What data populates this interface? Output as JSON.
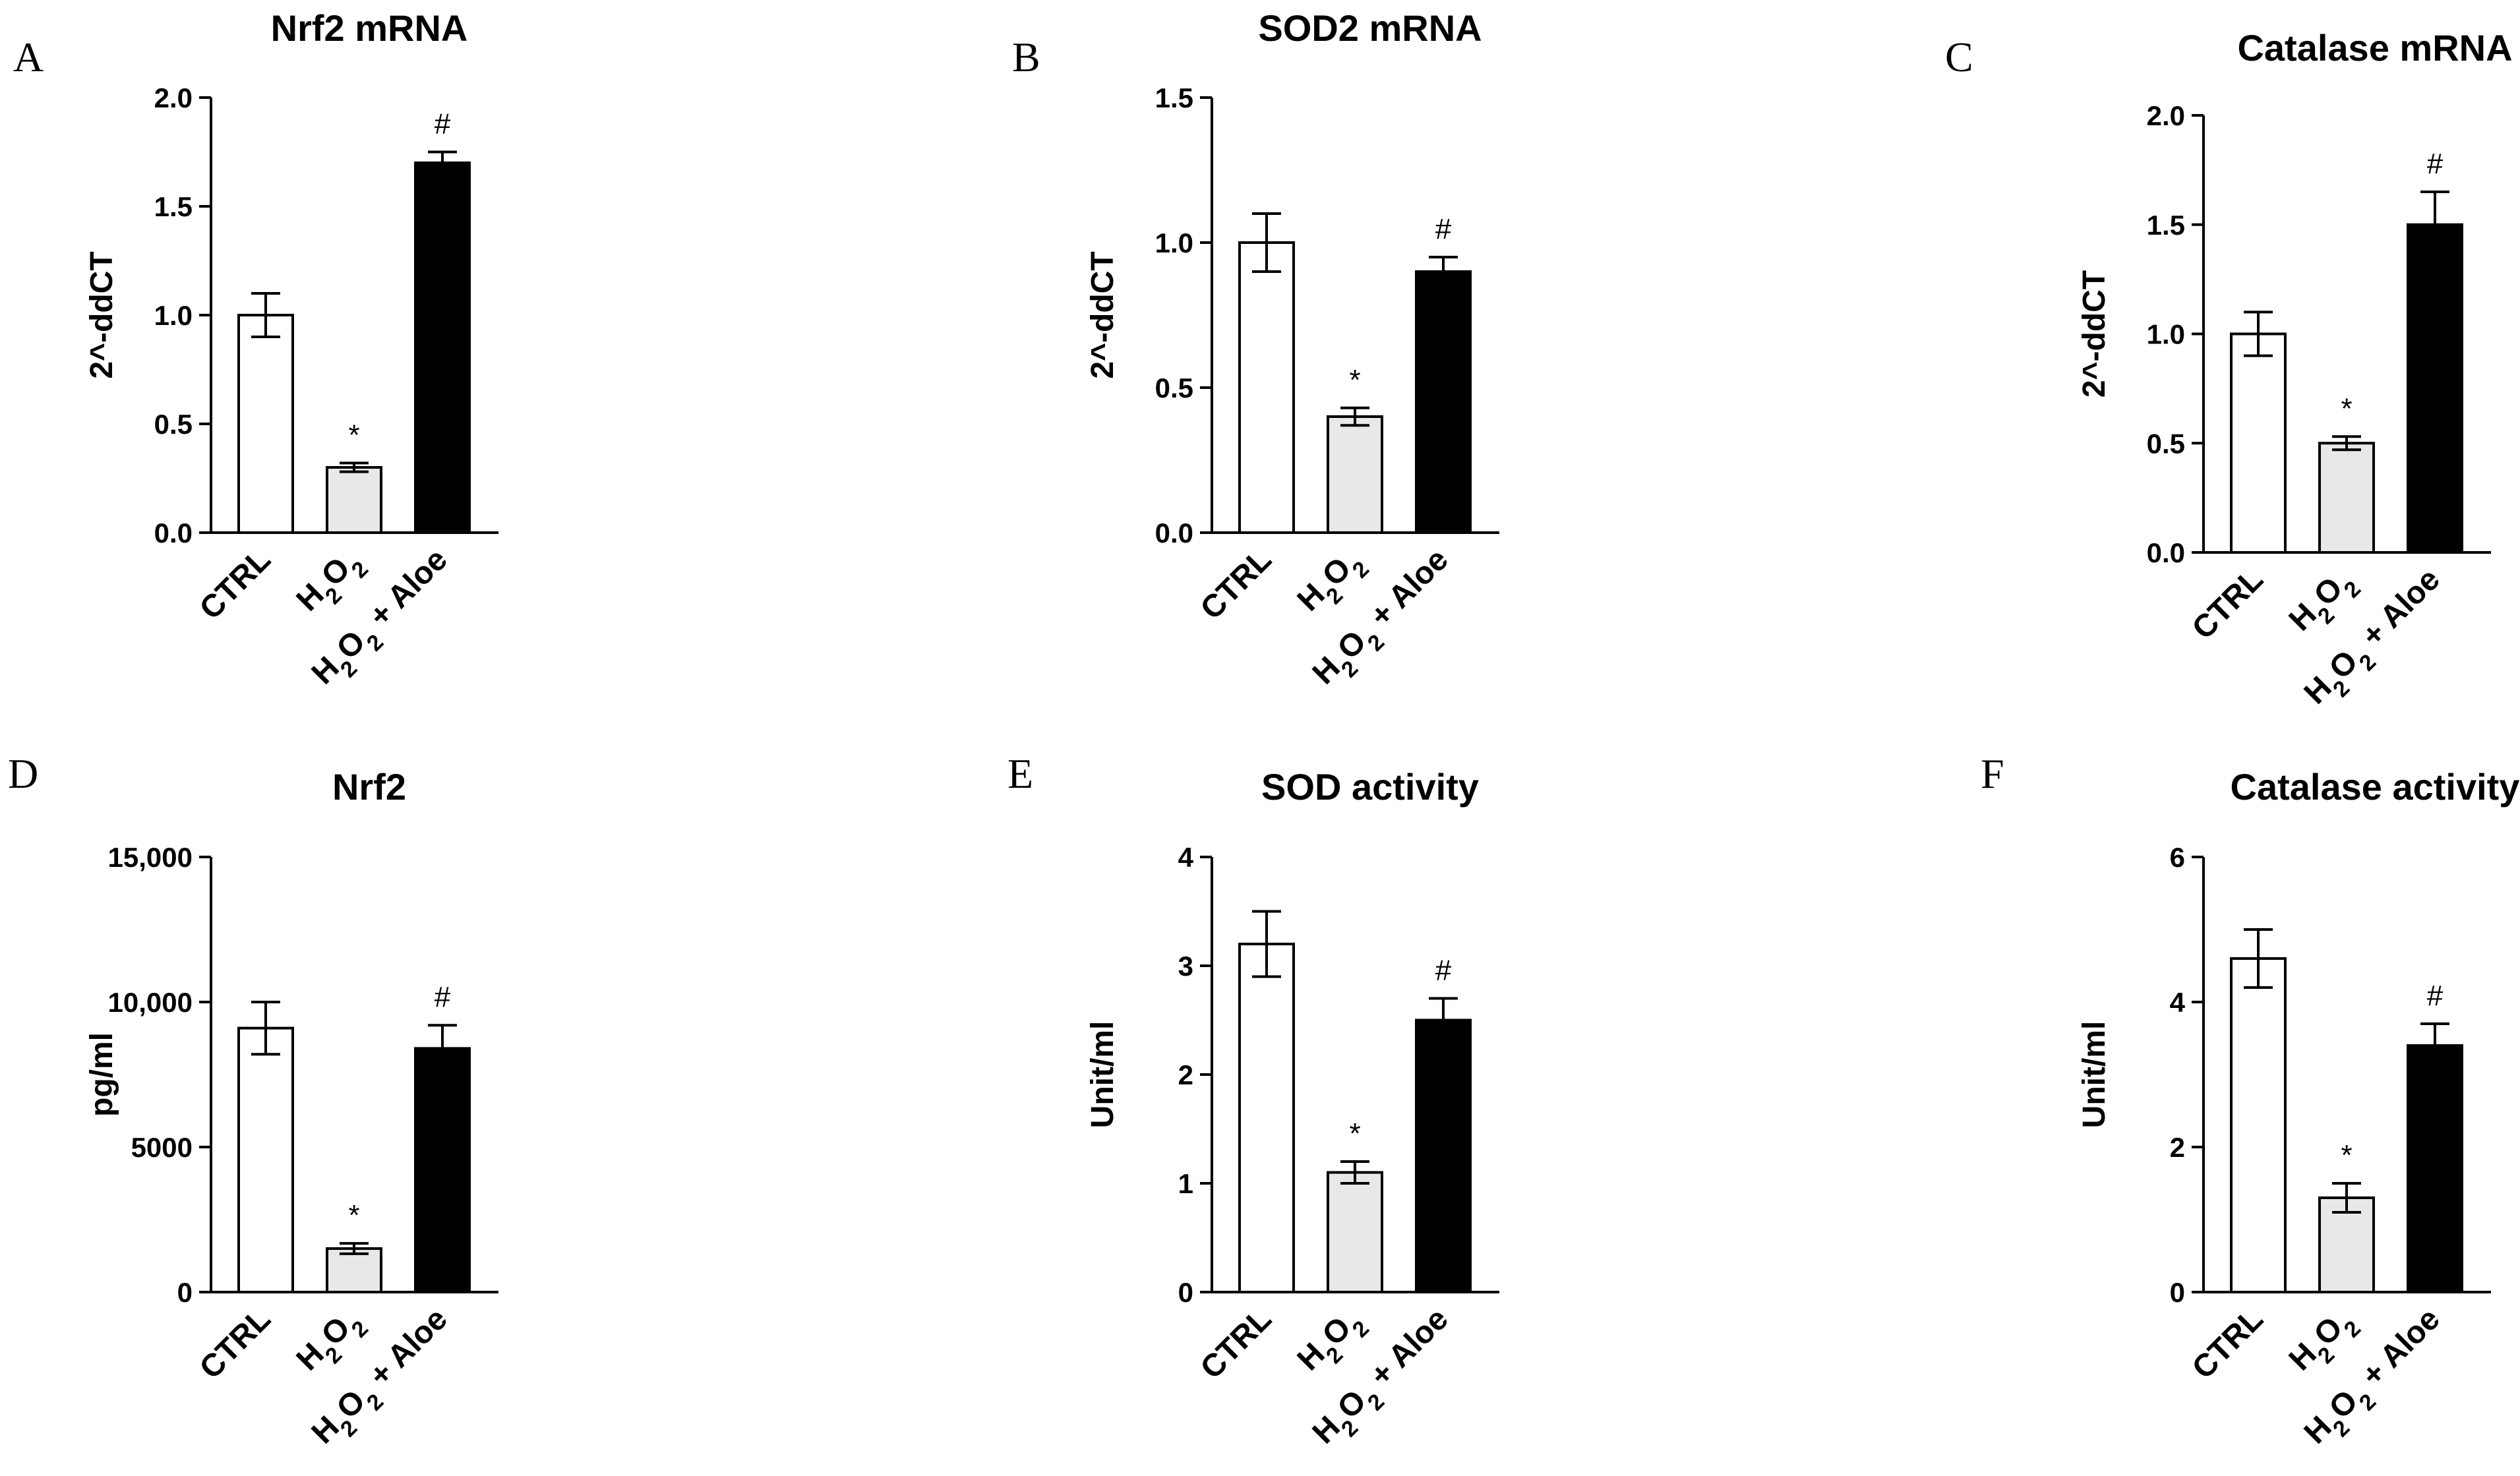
{
  "figure": {
    "colors": {
      "CTRL": "#ffffff",
      "H2O2": "#e8e8e8",
      "H2O2 + Aloe": "#000000",
      "axis": "#000000"
    }
  },
  "chart_data": [
    {
      "panel": "A",
      "type": "bar",
      "title": "Nrf2 mRNA",
      "ylabel": "2^-ddCT",
      "categories": [
        "CTRL",
        "H2O2",
        "H2O2 + Aloe"
      ],
      "values": [
        1.0,
        0.3,
        1.7
      ],
      "errors": [
        0.1,
        0.02,
        0.05
      ],
      "significance": [
        "",
        "*",
        "#"
      ],
      "ylim": [
        0,
        2.0
      ],
      "yticks": [
        0.0,
        0.5,
        1.0,
        1.5,
        2.0
      ],
      "ytick_labels": [
        "0.0",
        "0.5",
        "1.0",
        "1.5",
        "2.0"
      ]
    },
    {
      "panel": "B",
      "type": "bar",
      "title": "SOD2 mRNA",
      "ylabel": "2^-ddCT",
      "categories": [
        "CTRL",
        "H2O2",
        "H2O2 + Aloe"
      ],
      "values": [
        1.0,
        0.4,
        0.9
      ],
      "errors": [
        0.1,
        0.03,
        0.05
      ],
      "significance": [
        "",
        "*",
        "#"
      ],
      "ylim": [
        0,
        1.5
      ],
      "yticks": [
        0.0,
        0.5,
        1.0,
        1.5
      ],
      "ytick_labels": [
        "0.0",
        "0.5",
        "1.0",
        "1.5"
      ]
    },
    {
      "panel": "C",
      "type": "bar",
      "title": "Catalase mRNA",
      "ylabel": "2^-ddCT",
      "categories": [
        "CTRL",
        "H2O2",
        "H2O2 + Aloe"
      ],
      "values": [
        1.0,
        0.5,
        1.5
      ],
      "errors": [
        0.1,
        0.03,
        0.15
      ],
      "significance": [
        "",
        "*",
        "#"
      ],
      "ylim": [
        0,
        2.0
      ],
      "yticks": [
        0.0,
        0.5,
        1.0,
        1.5,
        2.0
      ],
      "ytick_labels": [
        "0.0",
        "0.5",
        "1.0",
        "1.5",
        "2.0"
      ]
    },
    {
      "panel": "D",
      "type": "bar",
      "title": "Nrf2",
      "ylabel": "pg/ml",
      "categories": [
        "CTRL",
        "H2O2",
        "H2O2 + Aloe"
      ],
      "values": [
        9100,
        1500,
        8400
      ],
      "errors": [
        900,
        180,
        800
      ],
      "significance": [
        "",
        "*",
        "#"
      ],
      "ylim": [
        0,
        15000
      ],
      "yticks": [
        0,
        5000,
        10000,
        15000
      ],
      "ytick_labels": [
        "0",
        "5000",
        "10,000",
        "15,000"
      ]
    },
    {
      "panel": "E",
      "type": "bar",
      "title": "SOD activity",
      "ylabel": "Unit/ml",
      "categories": [
        "CTRL",
        "H2O2",
        "H2O2 + Aloe"
      ],
      "values": [
        3.2,
        1.1,
        2.5
      ],
      "errors": [
        0.3,
        0.1,
        0.2
      ],
      "significance": [
        "",
        "*",
        "#"
      ],
      "ylim": [
        0,
        4
      ],
      "yticks": [
        0,
        1,
        2,
        3,
        4
      ],
      "ytick_labels": [
        "0",
        "1",
        "2",
        "3",
        "4"
      ]
    },
    {
      "panel": "F",
      "type": "bar",
      "title": "Catalase activity",
      "ylabel": "Unit/ml",
      "categories": [
        "CTRL",
        "H2O2",
        "H2O2 + Aloe"
      ],
      "values": [
        4.6,
        1.3,
        3.4
      ],
      "errors": [
        0.4,
        0.2,
        0.3
      ],
      "significance": [
        "",
        "*",
        "#"
      ],
      "ylim": [
        0,
        6
      ],
      "yticks": [
        0,
        2,
        4,
        6
      ],
      "ytick_labels": [
        "0",
        "2",
        "4",
        "6"
      ]
    }
  ]
}
